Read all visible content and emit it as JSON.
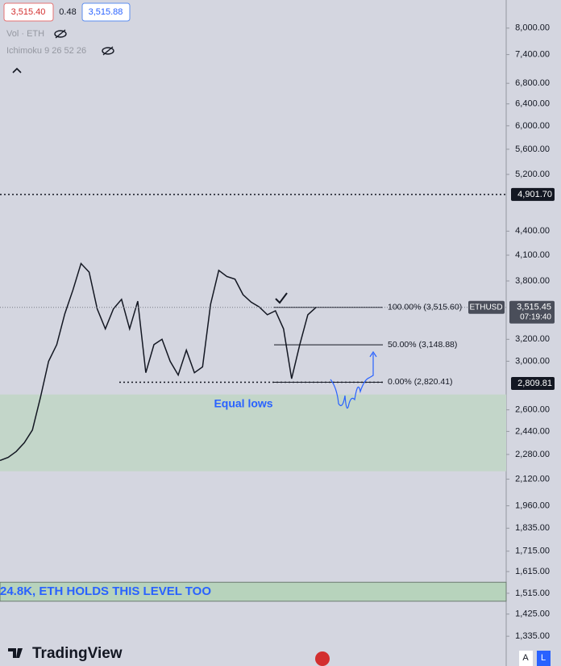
{
  "chart_data": {
    "type": "line",
    "log_scale": true,
    "ylim": [
      1223,
      8690
    ],
    "yticks": [
      {
        "value": 8000,
        "label": "8,000.00"
      },
      {
        "value": 7400,
        "label": "7,400.00"
      },
      {
        "value": 6800,
        "label": "6,800.00"
      },
      {
        "value": 6400,
        "label": "6,400.00"
      },
      {
        "value": 6000,
        "label": "6,000.00"
      },
      {
        "value": 5600,
        "label": "5,600.00"
      },
      {
        "value": 5200,
        "label": "5,200.00"
      },
      {
        "value": 4400,
        "label": "4,400.00"
      },
      {
        "value": 4100,
        "label": "4,100.00"
      },
      {
        "value": 3800,
        "label": "3,800.00"
      },
      {
        "value": 3200,
        "label": "3,200.00"
      },
      {
        "value": 3000,
        "label": "3,000.00"
      },
      {
        "value": 2600,
        "label": "2,600.00"
      },
      {
        "value": 2440,
        "label": "2,440.00"
      },
      {
        "value": 2280,
        "label": "2,280.00"
      },
      {
        "value": 2120,
        "label": "2,120.00"
      },
      {
        "value": 1960,
        "label": "1,960.00"
      },
      {
        "value": 1835,
        "label": "1,835.00"
      },
      {
        "value": 1715,
        "label": "1,715.00"
      },
      {
        "value": 1615,
        "label": "1,615.00"
      },
      {
        "value": 1515,
        "label": "1,515.00"
      },
      {
        "value": 1425,
        "label": "1,425.00"
      },
      {
        "value": 1335,
        "label": "1,335.00"
      }
    ],
    "series": [
      {
        "name": "ETHUSD",
        "color": "#131722",
        "values": [
          2240,
          2260,
          2300,
          2360,
          2450,
          2700,
          3000,
          3150,
          3450,
          3700,
          4000,
          3900,
          3500,
          3300,
          3500,
          3600,
          3300,
          3580,
          2900,
          3150,
          3200,
          3000,
          2880,
          3100,
          2900,
          2950,
          3550,
          3920,
          3850,
          3820,
          3650,
          3570,
          3520,
          3440,
          3480,
          3300,
          2850,
          3150,
          3440,
          3515
        ]
      }
    ],
    "header": {
      "bid": {
        "value": 3515.4,
        "label": "3,515.40"
      },
      "spread": 0.48,
      "ask": {
        "value": 3515.88,
        "label": "3,515.88"
      },
      "indicators": [
        "Vol · ETH",
        "Ichimoku 9 26 52 26"
      ]
    },
    "horizontal_levels": [
      {
        "value": 4901.7,
        "label": "4,901.70"
      },
      {
        "value": 2809.81,
        "label": "2,809.81"
      }
    ],
    "last_price": {
      "value": 3515.45,
      "label": "3,515.45",
      "countdown": "07:19:40"
    },
    "fib_levels": [
      {
        "value": 3515.6,
        "label": "100.00% (3,515.60)"
      },
      {
        "value": 3148.88,
        "label": "50.00% (3,148.88)"
      },
      {
        "value": 2820.41,
        "label": "0.00% (2,820.41)"
      }
    ],
    "zones": [
      {
        "low": 2170,
        "high": 2720,
        "color": "#c3d6c9",
        "label": "Equal lows"
      },
      {
        "low": 1480,
        "high": 1565,
        "color": "#b7d3bc",
        "label": "24.8K, ETH HOLDS THIS LEVEL TOO"
      }
    ],
    "brand": "TradingView",
    "scale_buttons": [
      "A",
      "L"
    ]
  }
}
